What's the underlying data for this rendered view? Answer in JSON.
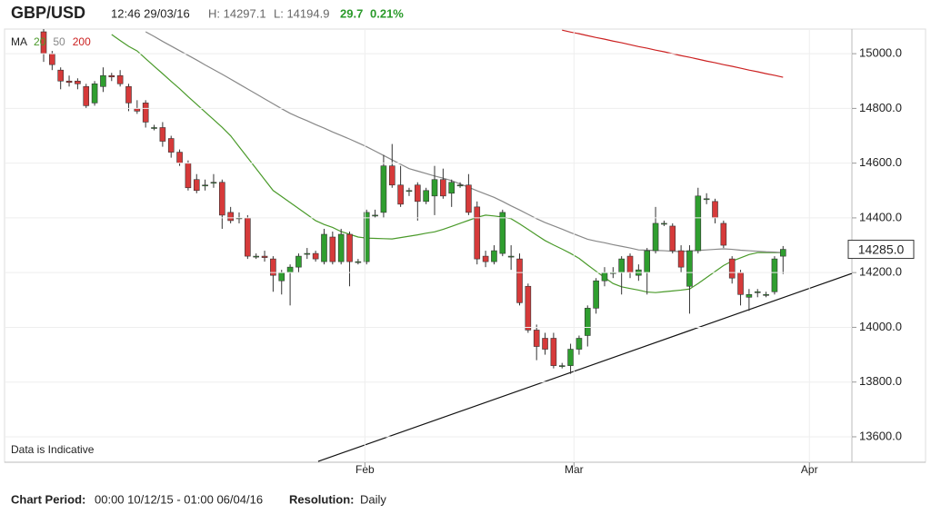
{
  "chart_data": {
    "type": "candlestick",
    "title": "GBP/USD",
    "timestamp": "12:46 29/03/16",
    "high_label": "H: 14297.1",
    "low_label": "L: 14194.9",
    "change": "29.7",
    "change_pct": "0.21%",
    "ma_label": "MA",
    "note": "Data is Indicative",
    "period_label": "Chart Period:",
    "period": "00:00 10/12/15 - 01:00 06/04/16",
    "resolution_label": "Resolution:",
    "resolution": "Daily",
    "up_color": "#2f9e2f",
    "down_color": "#d63a3a",
    "categories": [
      null,
      null,
      null,
      null,
      null,
      null,
      null,
      null,
      null,
      null,
      null,
      null,
      null,
      null,
      null,
      null,
      null,
      null,
      null,
      null,
      null,
      null,
      null,
      null,
      null,
      null,
      null,
      null,
      null,
      null,
      null,
      null,
      null,
      null,
      null,
      null,
      null,
      null,
      null,
      null,
      null,
      null,
      null,
      null,
      null,
      null,
      null,
      null,
      null,
      null,
      null,
      null,
      null,
      null,
      null,
      null,
      null,
      null,
      null,
      null,
      null,
      null,
      null,
      null,
      null,
      null,
      null,
      null,
      null,
      null,
      null,
      null,
      null,
      null,
      null,
      null,
      null,
      null,
      null,
      null,
      null,
      null,
      null,
      null,
      null,
      null,
      null,
      null
    ],
    "open": [
      15080,
      15000,
      14940,
      14900,
      14900,
      14880,
      14820,
      14880,
      14920,
      14920,
      14880,
      14800,
      14820,
      14730,
      14730,
      14690,
      14640,
      14600,
      14540,
      14520,
      14530,
      14530,
      14420,
      14400,
      14400,
      14260,
      14260,
      14250,
      14170,
      14200,
      14220,
      14270,
      14270,
      14240,
      14330,
      14240,
      14340,
      14240,
      14240,
      14410,
      14420,
      14590,
      14520,
      14500,
      14520,
      14460,
      14480,
      14540,
      14490,
      14520,
      14520,
      14440,
      14260,
      14240,
      14270,
      14260,
      14250,
      14150,
      13990,
      13960,
      13960,
      13860,
      13860,
      13920,
      13970,
      14070,
      14170,
      14200,
      14200,
      14260,
      14190,
      14200,
      14280,
      14380,
      14370,
      14280,
      14150,
      14280,
      14470,
      14460,
      14380,
      14250,
      14200,
      14110,
      14130,
      14120,
      14130,
      14260
    ],
    "high": [
      15090,
      15010,
      14950,
      14920,
      14910,
      14890,
      14900,
      14950,
      14930,
      14940,
      14890,
      14830,
      14830,
      14740,
      14750,
      14700,
      14650,
      14610,
      14560,
      14540,
      14560,
      14540,
      14440,
      14420,
      14410,
      14270,
      14280,
      14260,
      14210,
      14230,
      14270,
      14290,
      14280,
      14360,
      14350,
      14360,
      14350,
      14250,
      14430,
      14430,
      14630,
      14670,
      14590,
      14510,
      14530,
      14510,
      14590,
      14580,
      14540,
      14530,
      14560,
      14460,
      14280,
      14300,
      14430,
      14300,
      14270,
      14160,
      14010,
      13980,
      13980,
      13870,
      13940,
      13970,
      14080,
      14180,
      14220,
      14220,
      14260,
      14270,
      14230,
      14290,
      14440,
      14390,
      14380,
      14300,
      14300,
      14510,
      14490,
      14470,
      14390,
      14260,
      14210,
      14140,
      14140,
      14130,
      14260,
      14297.1
    ],
    "low": [
      14970,
      14940,
      14870,
      14880,
      14870,
      14800,
      14810,
      14860,
      14900,
      14880,
      14790,
      14780,
      14730,
      14720,
      14660,
      14620,
      14590,
      14500,
      14490,
      14500,
      14510,
      14360,
      14380,
      14380,
      14250,
      14250,
      14240,
      14130,
      14120,
      14080,
      14200,
      14250,
      14240,
      14230,
      14230,
      14230,
      14150,
      14230,
      14230,
      14400,
      14400,
      14510,
      14440,
      14480,
      14390,
      14450,
      14410,
      14470,
      14440,
      14510,
      14410,
      14230,
      14220,
      14230,
      14260,
      14210,
      14080,
      13980,
      13880,
      13900,
      13850,
      13850,
      13830,
      13900,
      13930,
      14050,
      14150,
      14180,
      14120,
      14180,
      14170,
      14120,
      14270,
      14370,
      14270,
      14200,
      14050,
      14270,
      14450,
      14380,
      14290,
      14160,
      14080,
      14060,
      14110,
      14110,
      14120,
      14194.9
    ],
    "close": [
      15000,
      14960,
      14900,
      14895,
      14890,
      14810,
      14890,
      14920,
      14915,
      14890,
      14820,
      14790,
      14750,
      14730,
      14680,
      14640,
      14600,
      14510,
      14500,
      14520,
      14530,
      14410,
      14390,
      14400,
      14260,
      14260,
      14255,
      14190,
      14200,
      14220,
      14260,
      14270,
      14250,
      14340,
      14240,
      14340,
      14240,
      14240,
      14420,
      14410,
      14590,
      14520,
      14450,
      14500,
      14460,
      14500,
      14540,
      14480,
      14530,
      14520,
      14420,
      14250,
      14240,
      14280,
      14420,
      14260,
      14090,
      13990,
      13930,
      13920,
      13860,
      13860,
      13920,
      13960,
      14070,
      14170,
      14200,
      14200,
      14250,
      14200,
      14210,
      14280,
      14380,
      14380,
      14280,
      14220,
      14280,
      14480,
      14470,
      14400,
      14300,
      14180,
      14120,
      14120,
      14130,
      14120,
      14250,
      14285
    ],
    "series": [
      {
        "name": "20",
        "color": "#4a9a2a",
        "values": [
          null,
          null,
          null,
          null,
          null,
          null,
          null,
          null,
          15070,
          15048,
          15027,
          15010,
          14982,
          14954,
          14927,
          14899,
          14872,
          14843,
          14815,
          14787,
          14759,
          14731,
          14700,
          14660,
          14620,
          14580,
          14540,
          14500,
          14478,
          14456,
          14434,
          14412,
          14390,
          14376,
          14365,
          14350,
          14340,
          14330,
          14326,
          14325,
          14324,
          14323,
          14328,
          14333,
          14338,
          14344,
          14349,
          14358,
          14369,
          14380,
          14391,
          14402,
          14410,
          14407,
          14403,
          14397,
          14378,
          14358,
          14337,
          14317,
          14301,
          14286,
          14270,
          14252,
          14228,
          14205,
          14182,
          14160,
          14148,
          14142,
          14136,
          14129,
          14127,
          14130,
          14133,
          14136,
          14140,
          14160,
          14182,
          14204,
          14226,
          14242,
          14254,
          14266,
          14273,
          14273,
          14273,
          14273
        ]
      },
      {
        "name": "50",
        "color": "#888888",
        "values": [
          null,
          null,
          null,
          null,
          null,
          null,
          null,
          null,
          null,
          null,
          null,
          null,
          15080,
          15063,
          15045,
          15028,
          15011,
          14994,
          14977,
          14959,
          14942,
          14925,
          14907,
          14889,
          14871,
          14853,
          14835,
          14817,
          14799,
          14782,
          14768,
          14755,
          14741,
          14728,
          14714,
          14701,
          14688,
          14674,
          14660,
          14644,
          14628,
          14612,
          14596,
          14580,
          14571,
          14562,
          14553,
          14545,
          14536,
          14524,
          14512,
          14499,
          14487,
          14475,
          14460,
          14444,
          14429,
          14413,
          14397,
          14383,
          14371,
          14359,
          14346,
          14334,
          14322,
          14315,
          14309,
          14302,
          14296,
          14290,
          14283,
          14282,
          14281,
          14280,
          14278,
          14277,
          14279,
          14281,
          14283,
          14285,
          14287,
          14285,
          14282,
          14280,
          14278,
          14276,
          14275,
          14273
        ]
      },
      {
        "name": "200",
        "color": "#cc2222",
        "values": [
          null,
          null,
          null,
          null,
          null,
          null,
          null,
          null,
          null,
          null,
          null,
          null,
          null,
          null,
          null,
          null,
          null,
          null,
          null,
          null,
          null,
          null,
          null,
          null,
          null,
          null,
          null,
          null,
          null,
          null,
          null,
          null,
          null,
          null,
          null,
          null,
          null,
          null,
          null,
          null,
          null,
          null,
          null,
          null,
          null,
          null,
          null,
          null,
          null,
          null,
          null,
          null,
          null,
          null,
          null,
          null,
          null,
          null,
          null,
          null,
          null,
          15086,
          15079,
          15073,
          15066,
          15059,
          15053,
          15046,
          15040,
          15033,
          15026,
          15020,
          15013,
          15007,
          15000,
          14993,
          14987,
          14980,
          14973,
          14967,
          14960,
          14954,
          14947,
          14940,
          14934,
          14927,
          14921,
          14914
        ]
      }
    ],
    "trendline": {
      "x": [
        32.3,
        95.1
      ],
      "values": [
        13510,
        14197
      ],
      "color": "#111111"
    },
    "last_price": {
      "value": 14285,
      "label": "14285.0"
    },
    "xlim": [
      -4.6,
      95.1
    ],
    "xticks": [
      {
        "value": 37.8,
        "label": "Feb"
      },
      {
        "value": 62.4,
        "label": "Mar"
      },
      {
        "value": 90.1,
        "label": "Apr"
      }
    ],
    "ylim": [
      13507,
      15090
    ],
    "yticks": [
      {
        "value": 13600,
        "label": "13600.0"
      },
      {
        "value": 13800,
        "label": "13800.0"
      },
      {
        "value": 14000,
        "label": "14000.0"
      },
      {
        "value": 14200,
        "label": "14200.0"
      },
      {
        "value": 14400,
        "label": "14400.0"
      },
      {
        "value": 14600,
        "label": "14600.0"
      },
      {
        "value": 14800,
        "label": "14800.0"
      },
      {
        "value": 15000,
        "label": "15000.0"
      }
    ],
    "grid": true
  }
}
